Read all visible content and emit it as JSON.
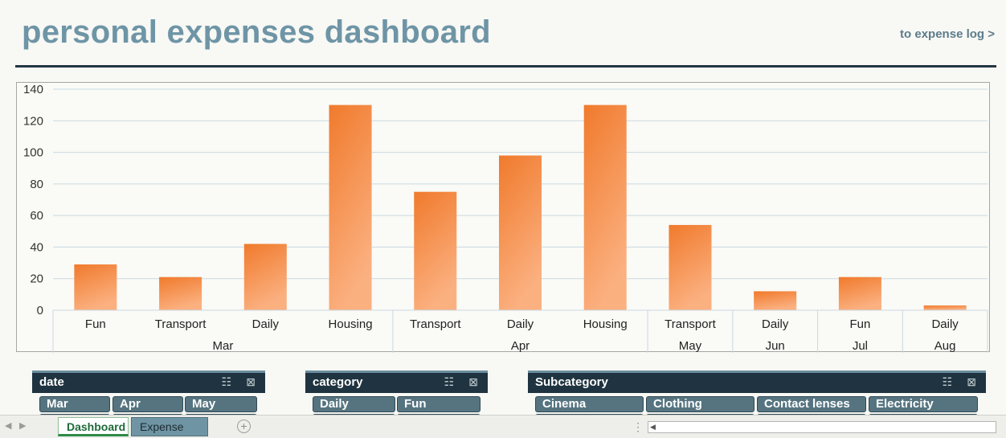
{
  "header": {
    "title": "personal expenses dashboard",
    "link": "to expense log >"
  },
  "chart_data": {
    "type": "bar",
    "y_ticks": [
      0,
      20,
      40,
      60,
      80,
      100,
      120,
      140
    ],
    "ylim": [
      0,
      140
    ],
    "categories": [
      "Fun",
      "Transport",
      "Daily",
      "Housing",
      "Transport",
      "Daily",
      "Housing",
      "Transport",
      "Daily",
      "Fun",
      "Daily"
    ],
    "values": [
      29,
      21,
      42,
      130,
      75,
      98,
      130,
      54,
      12,
      21,
      3
    ],
    "groups": [
      {
        "label": "Mar",
        "span": [
          0,
          3
        ]
      },
      {
        "label": "Apr",
        "span": [
          4,
          6
        ]
      },
      {
        "label": "May",
        "span": [
          7,
          7
        ]
      },
      {
        "label": "Jun",
        "span": [
          8,
          8
        ]
      },
      {
        "label": "Jul",
        "span": [
          9,
          9
        ]
      },
      {
        "label": "Aug",
        "span": [
          10,
          10
        ]
      }
    ],
    "grid": true,
    "bar_color_top": "#f07a2c",
    "bar_color_bottom": "#fbb080"
  },
  "slicers": {
    "date": {
      "title": "date",
      "items": [
        "Mar",
        "Apr",
        "May"
      ]
    },
    "category": {
      "title": "category",
      "items": [
        "Daily",
        "Fun"
      ]
    },
    "subcategory": {
      "title": "Subcategory",
      "items": [
        "Cinema",
        "Clothing",
        "Contact lenses",
        "Electricity"
      ]
    }
  },
  "slicer_icons": {
    "multiselect": "multi-select-icon",
    "clear": "clear-filter-icon"
  },
  "tabs": [
    {
      "label": "Dashboard",
      "active": true
    },
    {
      "label": "Expense Log",
      "active": false
    }
  ],
  "colors": {
    "title": "#6e95a6",
    "slicer_header": "#1f3440",
    "chip": "#567480",
    "accent": "#243642"
  }
}
